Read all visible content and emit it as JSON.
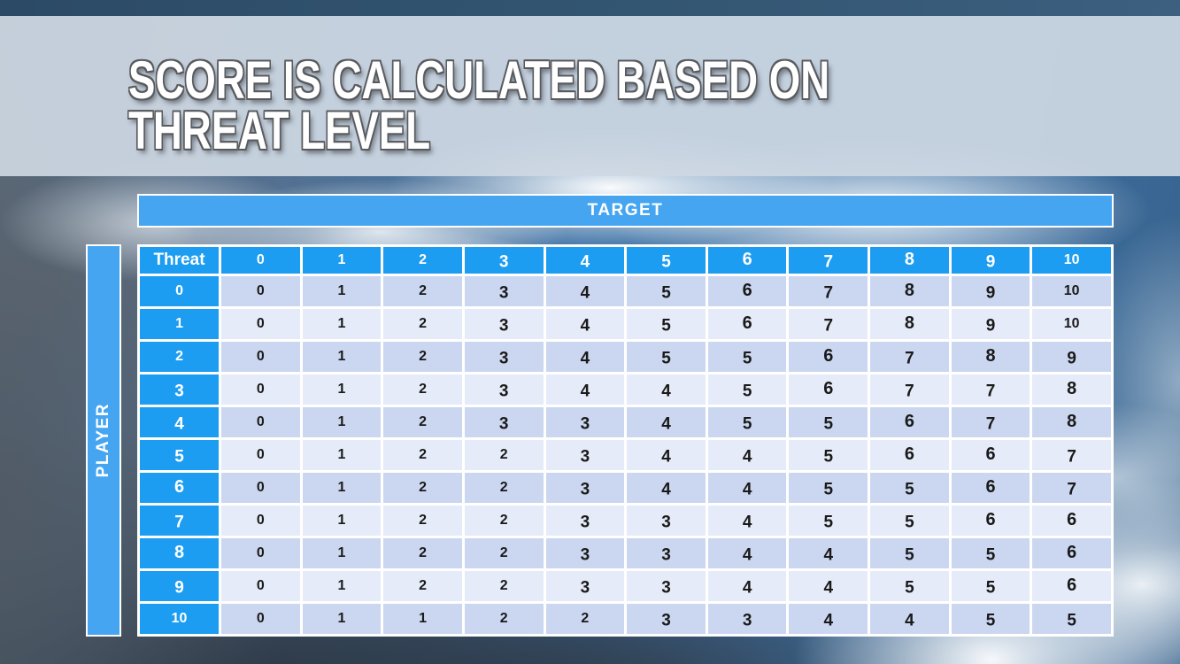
{
  "title": {
    "line1": "SCORE IS CALCULATED BASED ON",
    "line2": "THREAT LEVEL"
  },
  "matrix": {
    "target_axis_label": "TARGET",
    "player_axis_label": "PLAYER",
    "corner_header": "Threat",
    "target_levels": [
      "0",
      "1",
      "2",
      "3",
      "4",
      "5",
      "6",
      "7",
      "8",
      "9",
      "10"
    ],
    "player_rows": [
      {
        "threat": "0",
        "scores": [
          "0",
          "1",
          "2",
          "3",
          "4",
          "5",
          "6",
          "7",
          "8",
          "9",
          "10"
        ]
      },
      {
        "threat": "1",
        "scores": [
          "0",
          "1",
          "2",
          "3",
          "4",
          "5",
          "6",
          "7",
          "8",
          "9",
          "10"
        ]
      },
      {
        "threat": "2",
        "scores": [
          "0",
          "1",
          "2",
          "3",
          "4",
          "5",
          "5",
          "6",
          "7",
          "8",
          "9"
        ]
      },
      {
        "threat": "3",
        "scores": [
          "0",
          "1",
          "2",
          "3",
          "4",
          "4",
          "5",
          "6",
          "7",
          "7",
          "8"
        ]
      },
      {
        "threat": "4",
        "scores": [
          "0",
          "1",
          "2",
          "3",
          "3",
          "4",
          "5",
          "5",
          "6",
          "7",
          "8"
        ]
      },
      {
        "threat": "5",
        "scores": [
          "0",
          "1",
          "2",
          "2",
          "3",
          "4",
          "4",
          "5",
          "6",
          "6",
          "7"
        ]
      },
      {
        "threat": "6",
        "scores": [
          "0",
          "1",
          "2",
          "2",
          "3",
          "4",
          "4",
          "5",
          "5",
          "6",
          "7"
        ]
      },
      {
        "threat": "7",
        "scores": [
          "0",
          "1",
          "2",
          "2",
          "3",
          "3",
          "4",
          "5",
          "5",
          "6",
          "6"
        ]
      },
      {
        "threat": "8",
        "scores": [
          "0",
          "1",
          "2",
          "2",
          "3",
          "3",
          "4",
          "4",
          "5",
          "5",
          "6"
        ]
      },
      {
        "threat": "9",
        "scores": [
          "0",
          "1",
          "2",
          "2",
          "3",
          "3",
          "4",
          "4",
          "5",
          "5",
          "6"
        ]
      },
      {
        "threat": "10",
        "scores": [
          "0",
          "1",
          "1",
          "2",
          "2",
          "3",
          "3",
          "4",
          "4",
          "5",
          "5"
        ]
      }
    ]
  },
  "colors": {
    "header_blue": "#1C9DF1",
    "band_blue": "#45A5F1",
    "row_dark": "#CBD7F0",
    "row_light": "#E5EBF8",
    "cell_text": "#1A1A1A"
  },
  "chart_data": {
    "type": "table",
    "title": "Score matrix by threat level",
    "x_axis_label": "TARGET",
    "y_axis_label": "PLAYER",
    "columns": [
      "Threat",
      "0",
      "1",
      "2",
      "3",
      "4",
      "5",
      "6",
      "7",
      "8",
      "9",
      "10"
    ],
    "rows": [
      [
        "0",
        0,
        1,
        2,
        3,
        4,
        5,
        6,
        7,
        8,
        9,
        10
      ],
      [
        "1",
        0,
        1,
        2,
        3,
        4,
        5,
        6,
        7,
        8,
        9,
        10
      ],
      [
        "2",
        0,
        1,
        2,
        3,
        4,
        5,
        5,
        6,
        7,
        8,
        9
      ],
      [
        "3",
        0,
        1,
        2,
        3,
        4,
        4,
        5,
        6,
        7,
        7,
        8
      ],
      [
        "4",
        0,
        1,
        2,
        3,
        3,
        4,
        5,
        5,
        6,
        7,
        8
      ],
      [
        "5",
        0,
        1,
        2,
        2,
        3,
        4,
        4,
        5,
        6,
        6,
        7
      ],
      [
        "6",
        0,
        1,
        2,
        2,
        3,
        4,
        4,
        5,
        5,
        6,
        7
      ],
      [
        "7",
        0,
        1,
        2,
        2,
        3,
        3,
        4,
        5,
        5,
        6,
        6
      ],
      [
        "8",
        0,
        1,
        2,
        2,
        3,
        3,
        4,
        4,
        5,
        5,
        6
      ],
      [
        "9",
        0,
        1,
        2,
        2,
        3,
        3,
        4,
        4,
        5,
        5,
        6
      ],
      [
        "10",
        0,
        1,
        1,
        2,
        2,
        3,
        3,
        4,
        4,
        5,
        5
      ]
    ]
  }
}
